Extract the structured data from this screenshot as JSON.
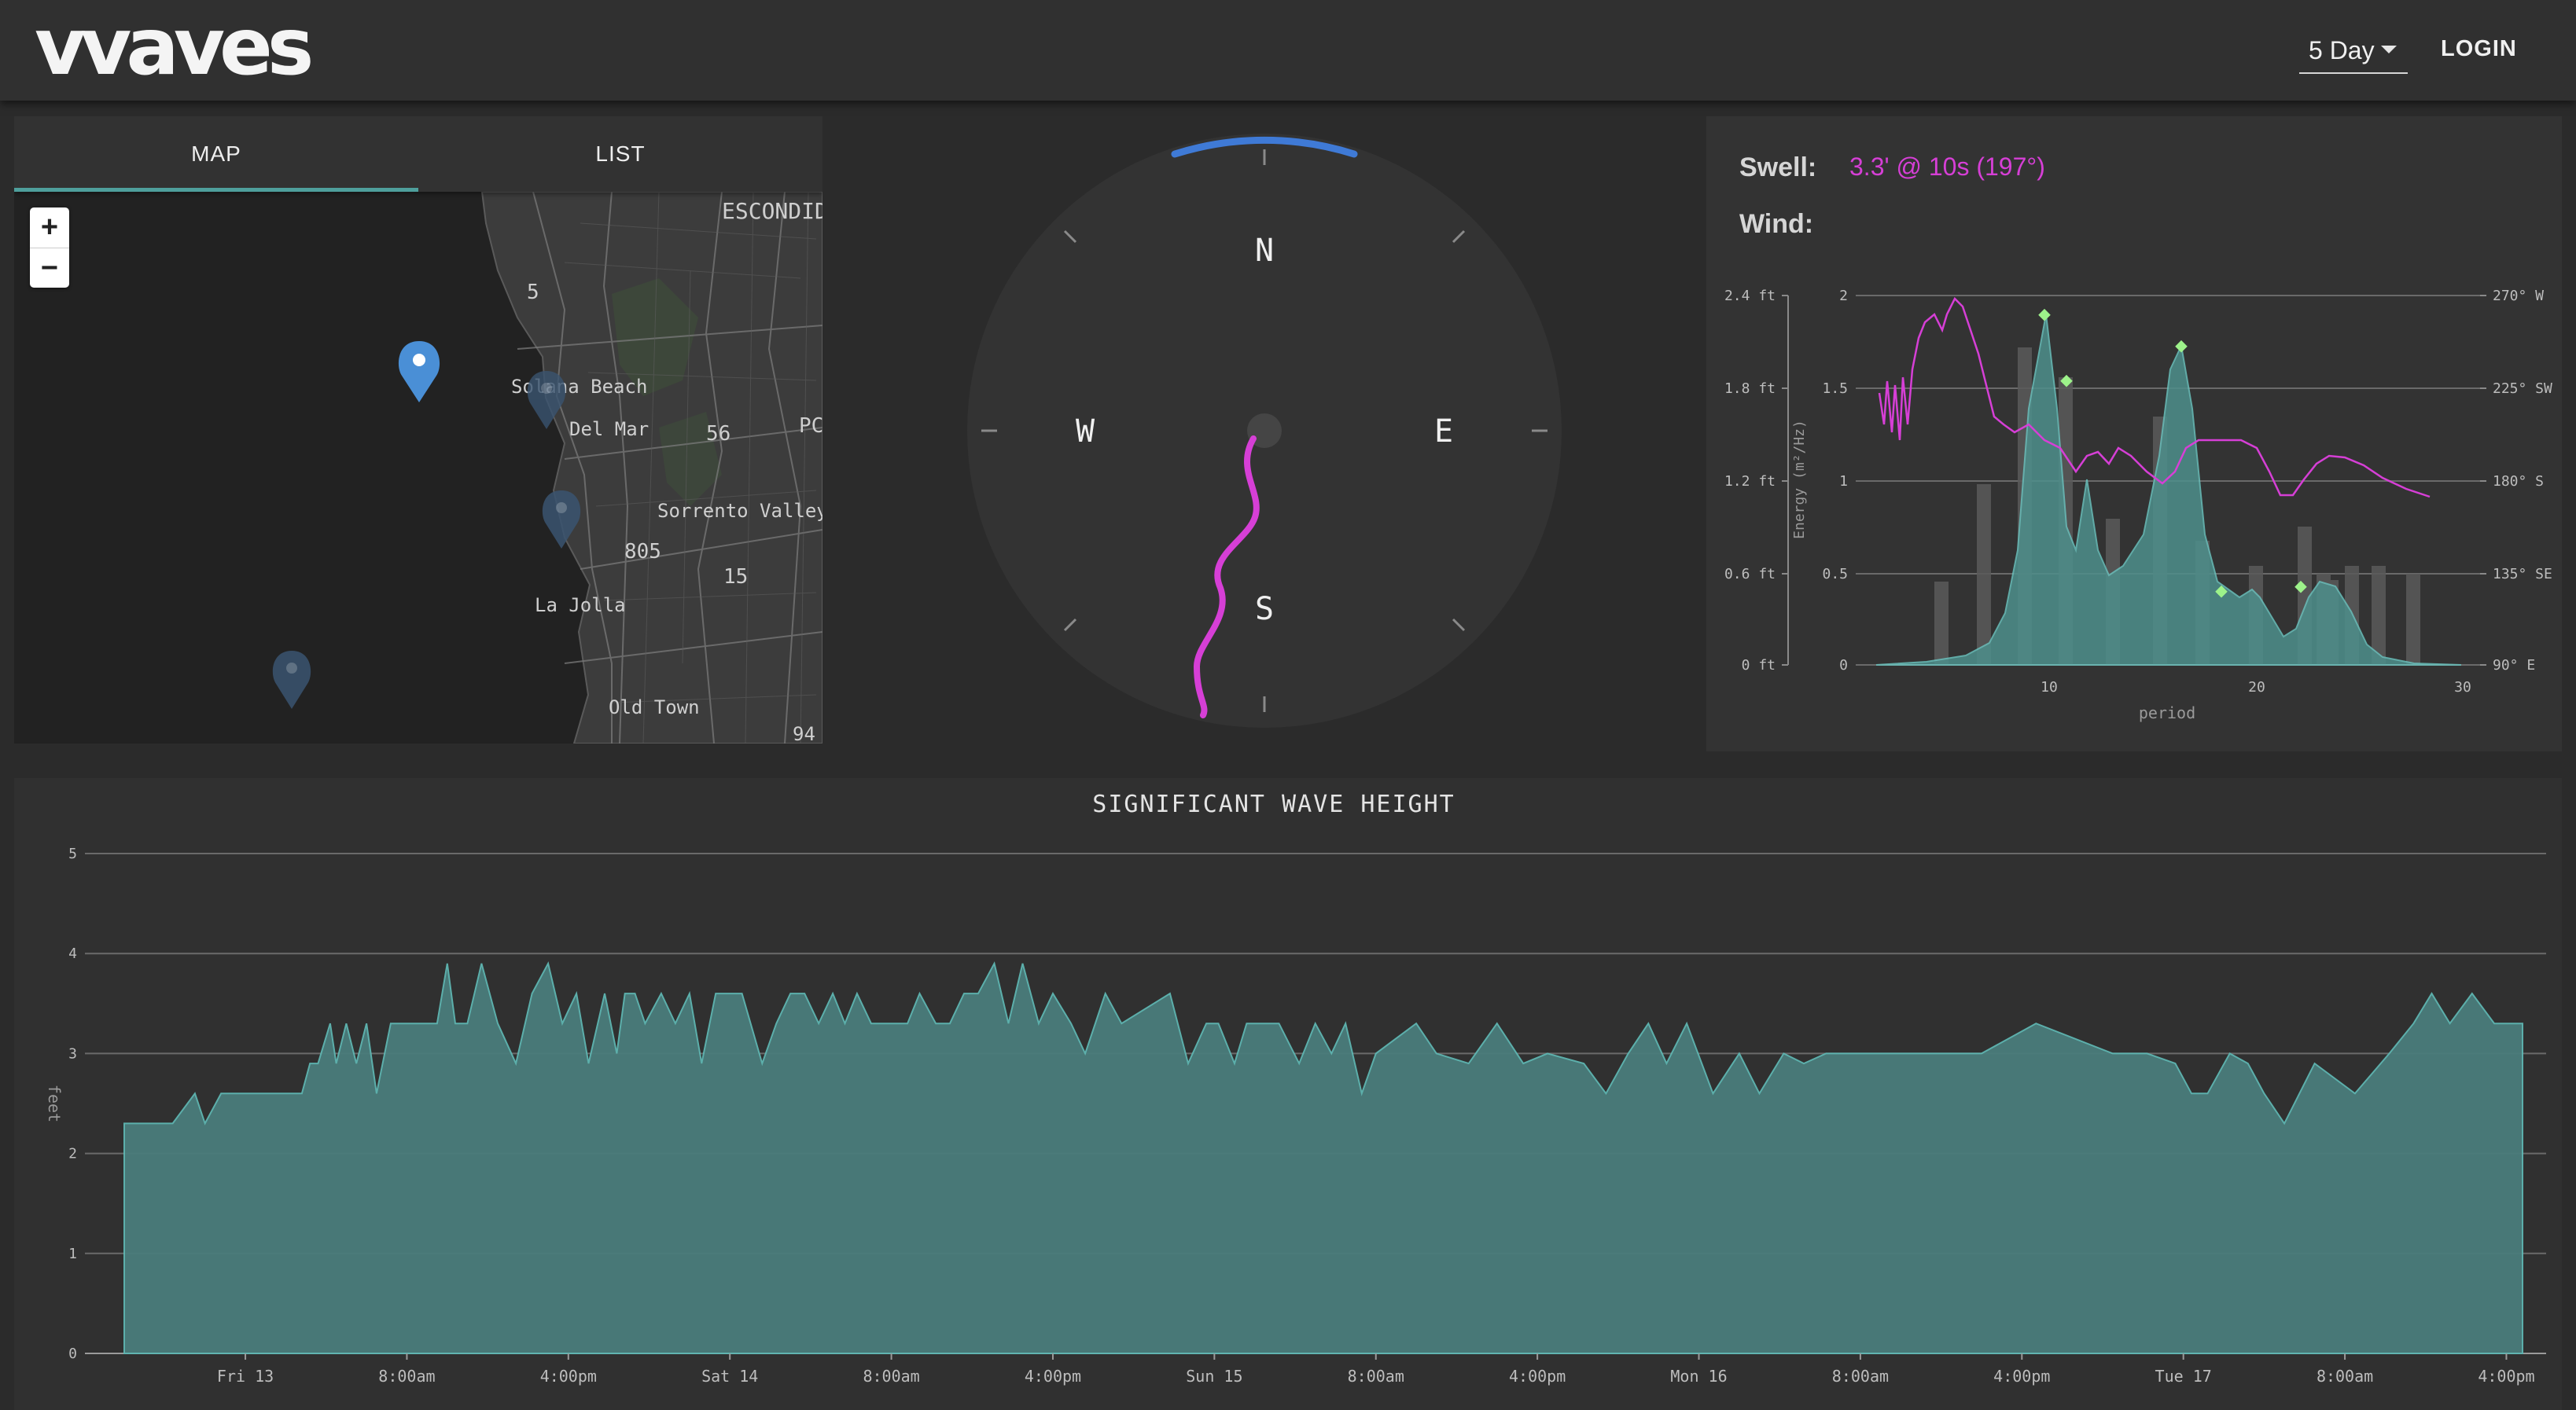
{
  "app": {
    "logo": "vvaves"
  },
  "header": {
    "range_label": "5 Day",
    "login_label": "LOGIN",
    "caret_icon": "caret-down-icon"
  },
  "map": {
    "tabs": [
      {
        "label": "MAP",
        "active": true
      },
      {
        "label": "LIST",
        "active": false
      }
    ],
    "zoom_in": "+",
    "zoom_out": "−",
    "places": [
      "ESCONDID",
      "5",
      "Solana Beach",
      "Del Mar",
      "56",
      "PC",
      "Sorrento Valley",
      "805",
      "15",
      "La Jolla",
      "Old Town",
      "94"
    ]
  },
  "compass": {
    "north": "N",
    "south": "S",
    "east": "E",
    "west": "W"
  },
  "swell": {
    "swell_label": "Swell:",
    "swell_value": "3.3' @ 10s (197°)",
    "wind_label": "Wind:",
    "colors": {
      "swell": "#d63fd6",
      "accent": "#4e9f9c",
      "spectrum_fill": "#4e8f8c"
    },
    "spectrum": {
      "type": "area",
      "xlabel": "period",
      "ylabel": "Energy (m²/Hz)",
      "x_ticks": [
        "10",
        "20",
        "30"
      ],
      "y_ticks": [
        "0",
        "0.5",
        "1",
        "1.5",
        "2"
      ],
      "left_ticks": [
        "0 ft",
        "0.6 ft",
        "1.2 ft",
        "1.8 ft",
        "2.4 ft"
      ],
      "right_ticks": [
        "90° E",
        "135° SE",
        "180° S",
        "225° SW",
        "270° W"
      ]
    }
  },
  "wave_height": {
    "title": "SIGNIFICANT WAVE HEIGHT",
    "ylabel": "feet"
  },
  "chart_data": {
    "type": "area",
    "title": "SIGNIFICANT WAVE HEIGHT",
    "ylabel": "feet",
    "ylim": [
      0,
      5
    ],
    "y_ticks": [
      "0",
      "1",
      "2",
      "3",
      "4",
      "5"
    ],
    "x_ticks": [
      "Fri 13",
      "8:00am",
      "4:00pm",
      "Sat 14",
      "8:00am",
      "4:00pm",
      "Sun 15",
      "8:00am",
      "4:00pm",
      "Mon 16",
      "8:00am",
      "4:00pm",
      "Tue 17",
      "8:00am",
      "4:00pm"
    ],
    "x_hours": [
      0,
      8,
      16,
      24,
      32,
      40,
      48,
      56,
      64,
      72,
      80,
      88,
      96,
      104,
      112
    ],
    "x_range_hours": [
      -6,
      112.8
    ],
    "series": [
      {
        "hours": [
          -6,
          -3.6,
          -2.5,
          -2,
          -1.2,
          -0.2,
          1.2,
          2,
          2.8,
          3.2,
          3.6,
          4.2,
          4.5,
          5,
          5.5,
          6,
          6.5,
          7.2,
          8.2,
          9.5,
          10,
          10.4,
          11,
          11.7,
          12.5,
          13.4,
          14.2,
          15,
          15.7,
          16.4,
          17,
          17.8,
          18.4,
          18.8,
          19.3,
          19.8,
          20.6,
          21.3,
          22,
          22.6,
          23.3,
          24.6,
          25.6,
          26.3,
          27,
          27.7,
          28.4,
          29.1,
          29.7,
          30.3,
          31,
          32.8,
          33.4,
          34.2,
          34.9,
          35.6,
          36.3,
          37.1,
          37.8,
          38.5,
          39.3,
          40,
          40.9,
          41.6,
          42.6,
          43.4,
          45.8,
          46.7,
          47.6,
          48.2,
          49,
          49.6,
          50.2,
          51.2,
          52.2,
          53,
          53.8,
          54.5,
          55.3,
          56,
          58,
          59,
          60.6,
          62,
          63.3,
          64.5,
          66.3,
          67.4,
          68.5,
          69.5,
          70.4,
          71.4,
          72.7,
          74,
          75,
          76.2,
          77.2,
          78.3,
          79.4,
          80.7,
          82,
          83.4,
          86,
          88.7,
          92.5,
          94.2,
          95.6,
          96.4,
          97.2,
          98.3,
          99.2,
          100,
          101,
          102.5,
          104.5,
          106.2,
          107.4,
          108.3,
          109.2,
          110.3,
          111.4,
          112.4,
          112.8
        ],
        "feet": [
          2.3,
          2.3,
          2.6,
          2.3,
          2.6,
          2.6,
          2.6,
          2.6,
          2.6,
          2.9,
          2.9,
          3.3,
          2.9,
          3.3,
          2.9,
          3.3,
          2.6,
          3.3,
          3.3,
          3.3,
          3.9,
          3.3,
          3.3,
          3.9,
          3.3,
          2.9,
          3.6,
          3.9,
          3.3,
          3.6,
          2.9,
          3.6,
          3.0,
          3.6,
          3.6,
          3.3,
          3.6,
          3.3,
          3.6,
          2.9,
          3.6,
          3.6,
          2.9,
          3.3,
          3.6,
          3.6,
          3.3,
          3.6,
          3.3,
          3.6,
          3.3,
          3.3,
          3.6,
          3.3,
          3.3,
          3.6,
          3.6,
          3.9,
          3.3,
          3.9,
          3.3,
          3.6,
          3.3,
          3.0,
          3.6,
          3.3,
          3.6,
          2.9,
          3.3,
          3.3,
          2.9,
          3.3,
          3.3,
          3.3,
          2.9,
          3.3,
          3.0,
          3.3,
          2.6,
          3.0,
          3.3,
          3.0,
          2.9,
          3.3,
          2.9,
          3.0,
          2.9,
          2.6,
          3.0,
          3.3,
          2.9,
          3.3,
          2.6,
          3.0,
          2.6,
          3.0,
          2.9,
          3.0,
          3.0,
          3.0,
          3.0,
          3.0,
          3.0,
          3.3,
          3.0,
          3.0,
          2.9,
          2.6,
          2.6,
          3.0,
          2.9,
          2.6,
          2.3,
          2.9,
          2.6,
          3.0,
          3.3,
          3.6,
          3.3,
          3.6,
          3.3,
          3.3,
          3.3,
          2.9
        ]
      }
    ]
  }
}
